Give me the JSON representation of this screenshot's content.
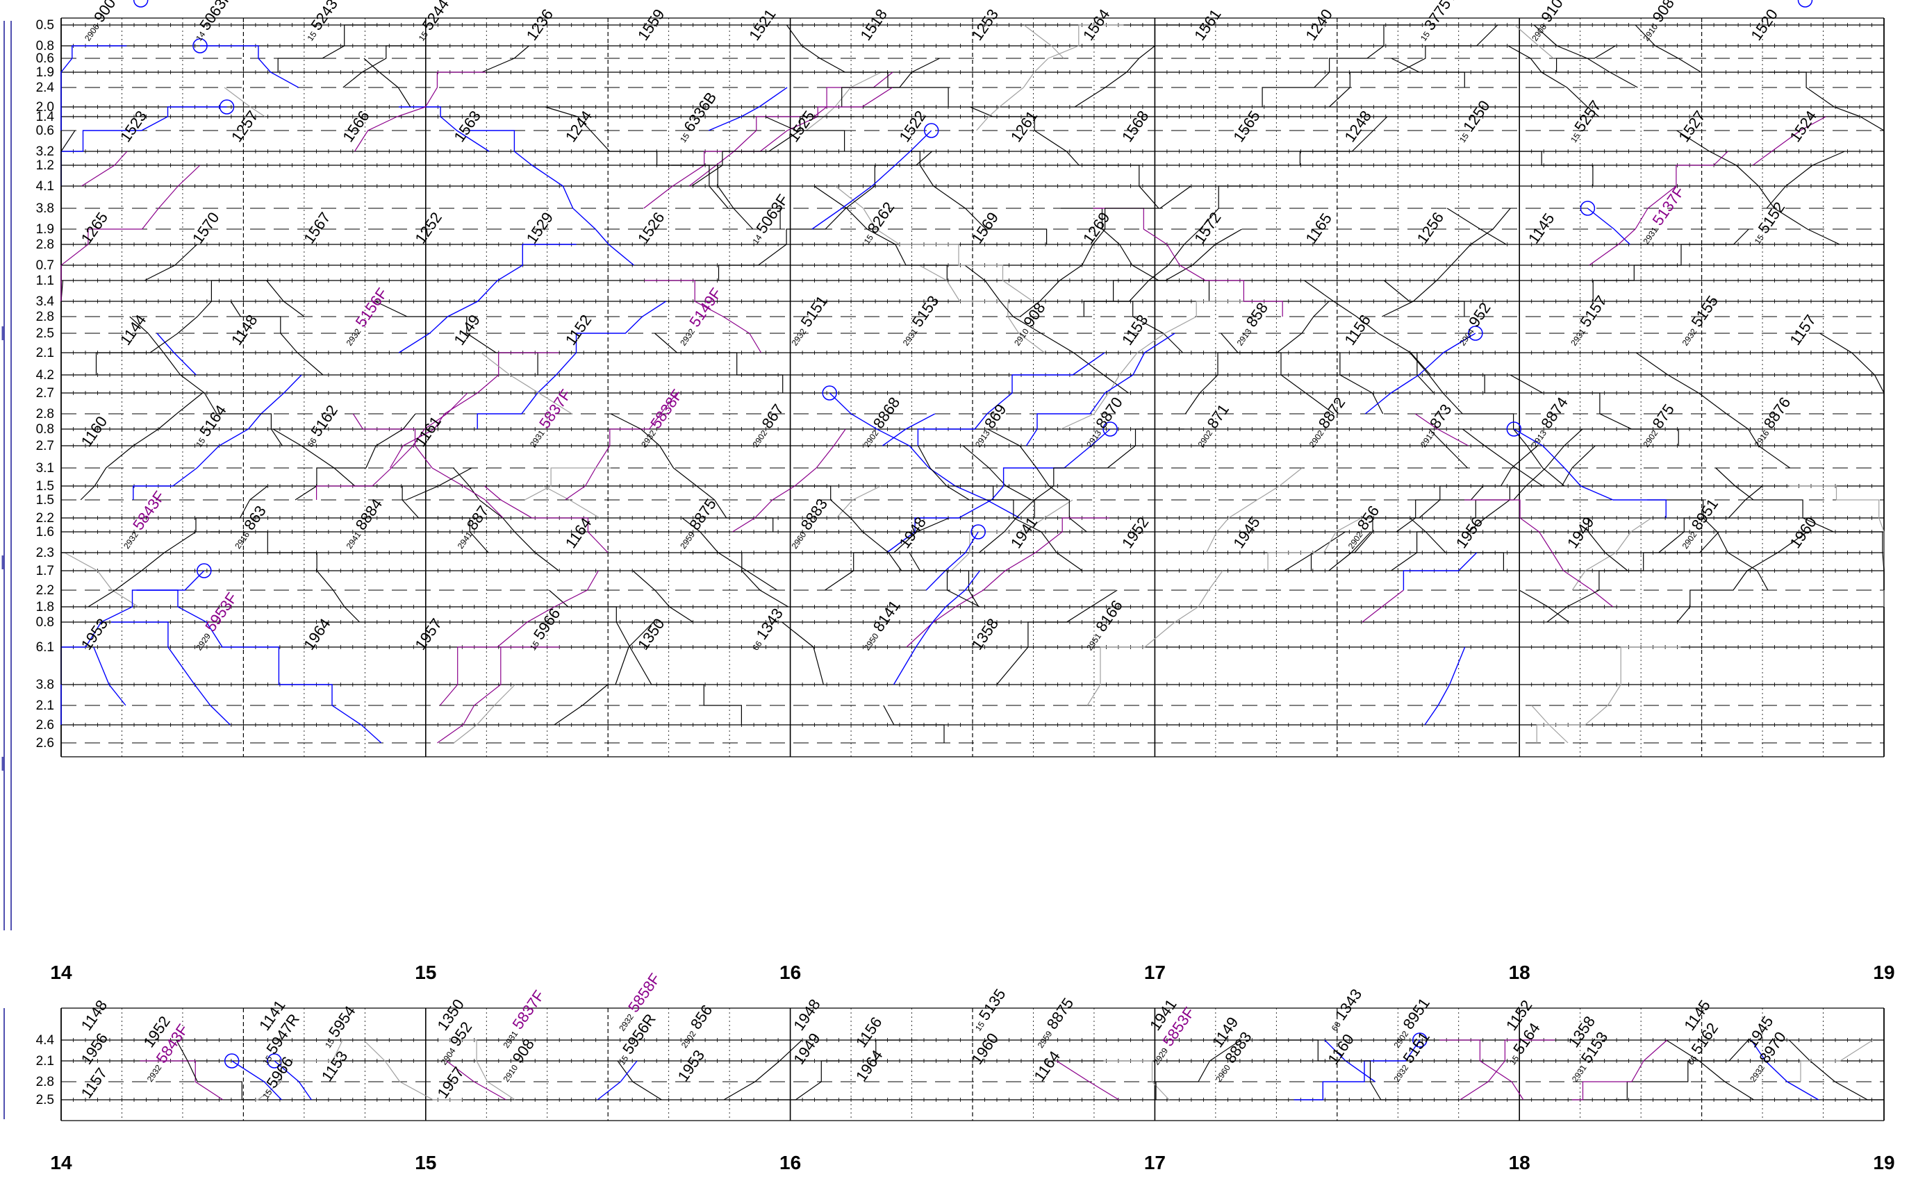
{
  "colors": {
    "background": "#ffffff",
    "grid": "#000000",
    "freight_train": "#000000",
    "passenger_train": "#0000ff",
    "special_train": "#8b008b",
    "inactive_train": "#a0a0a0"
  },
  "main_chart": {
    "station_labels": [
      "0.5",
      "0.8",
      "0.6",
      "1.9",
      "2.4",
      "2.0",
      "1.4",
      "0.6",
      "3.2",
      "1.2",
      "4.1",
      "3.8",
      "1.9",
      "2.8",
      "0.7",
      "1.1",
      "3.4",
      "2.8",
      "2.5",
      "2.1",
      "4.2",
      "2.7",
      "2.8",
      "0.8",
      "2.7",
      "3.1",
      "1.5",
      "1.5",
      "2.2",
      "1.6",
      "2.3",
      "1.7",
      "2.2",
      "1.8",
      "0.8",
      "6.1",
      "3.8",
      "2.1",
      "2.6",
      "2.6"
    ],
    "hour_labels": [
      "14",
      "15",
      "16",
      "17",
      "18",
      "19"
    ],
    "train_labels": [
      {
        "number": "900",
        "prefix": "2906",
        "color": "black"
      },
      {
        "number": "5063F",
        "prefix": "14",
        "color": "black"
      },
      {
        "number": "5243",
        "prefix": "15",
        "color": "black"
      },
      {
        "number": "5244",
        "prefix": "15",
        "color": "black"
      },
      {
        "number": "1236",
        "prefix": "",
        "color": "black"
      },
      {
        "number": "1559",
        "prefix": "",
        "color": "black"
      },
      {
        "number": "1521",
        "prefix": "",
        "color": "black"
      },
      {
        "number": "1518",
        "prefix": "",
        "color": "black"
      },
      {
        "number": "1253",
        "prefix": "",
        "color": "black"
      },
      {
        "number": "1564",
        "prefix": "",
        "color": "black"
      },
      {
        "number": "1561",
        "prefix": "",
        "color": "black"
      },
      {
        "number": "1240",
        "prefix": "",
        "color": "black"
      },
      {
        "number": "3775T",
        "prefix": "15",
        "color": "black"
      },
      {
        "number": "910",
        "prefix": "2908",
        "color": "black"
      },
      {
        "number": "908",
        "prefix": "2910",
        "color": "black"
      },
      {
        "number": "1520",
        "prefix": "",
        "color": "black"
      },
      {
        "number": "1523",
        "prefix": "",
        "color": "black"
      },
      {
        "number": "1257",
        "prefix": "",
        "color": "black"
      },
      {
        "number": "1566",
        "prefix": "",
        "color": "black"
      },
      {
        "number": "1563",
        "prefix": "",
        "color": "black"
      },
      {
        "number": "1244",
        "prefix": "",
        "color": "black"
      },
      {
        "number": "6336B",
        "prefix": "15",
        "color": "black"
      },
      {
        "number": "1525",
        "prefix": "",
        "color": "black"
      },
      {
        "number": "1522",
        "prefix": "",
        "color": "black"
      },
      {
        "number": "1261",
        "prefix": "",
        "color": "black"
      },
      {
        "number": "1568",
        "prefix": "",
        "color": "black"
      },
      {
        "number": "1565",
        "prefix": "",
        "color": "black"
      },
      {
        "number": "1248",
        "prefix": "",
        "color": "black"
      },
      {
        "number": "1250",
        "prefix": "15",
        "color": "black"
      },
      {
        "number": "5257",
        "prefix": "15",
        "color": "black"
      },
      {
        "number": "1527",
        "prefix": "",
        "color": "black"
      },
      {
        "number": "1524",
        "prefix": "",
        "color": "black"
      },
      {
        "number": "1265",
        "prefix": "",
        "color": "black"
      },
      {
        "number": "1570",
        "prefix": "",
        "color": "black"
      },
      {
        "number": "1567",
        "prefix": "",
        "color": "black"
      },
      {
        "number": "1252",
        "prefix": "",
        "color": "black"
      },
      {
        "number": "1529",
        "prefix": "",
        "color": "black"
      },
      {
        "number": "1526",
        "prefix": "",
        "color": "black"
      },
      {
        "number": "5063F",
        "prefix": "14",
        "color": "black"
      },
      {
        "number": "8262",
        "prefix": "15",
        "color": "black"
      },
      {
        "number": "1569",
        "prefix": "",
        "color": "black"
      },
      {
        "number": "1269",
        "prefix": "",
        "color": "black"
      },
      {
        "number": "1572",
        "prefix": "",
        "color": "black"
      },
      {
        "number": "1165",
        "prefix": "",
        "color": "black"
      },
      {
        "number": "1256",
        "prefix": "",
        "color": "black"
      },
      {
        "number": "1145",
        "prefix": "",
        "color": "black"
      },
      {
        "number": "5137F",
        "prefix": "2931",
        "color": "purple"
      },
      {
        "number": "5152",
        "prefix": "15",
        "color": "black"
      },
      {
        "number": "1144",
        "prefix": "",
        "color": "black"
      },
      {
        "number": "1148",
        "prefix": "",
        "color": "black"
      },
      {
        "number": "5156F",
        "prefix": "2932",
        "color": "purple"
      },
      {
        "number": "1149",
        "prefix": "",
        "color": "black"
      },
      {
        "number": "1152",
        "prefix": "",
        "color": "black"
      },
      {
        "number": "5149F",
        "prefix": "2932",
        "color": "purple"
      },
      {
        "number": "5151",
        "prefix": "2932",
        "color": "black"
      },
      {
        "number": "5153",
        "prefix": "2931",
        "color": "black"
      },
      {
        "number": "908",
        "prefix": "2910",
        "color": "black"
      },
      {
        "number": "1153",
        "prefix": "",
        "color": "black"
      },
      {
        "number": "858",
        "prefix": "2913",
        "color": "black"
      },
      {
        "number": "1156",
        "prefix": "",
        "color": "black"
      },
      {
        "number": "952",
        "prefix": "2904",
        "color": "black"
      },
      {
        "number": "5157",
        "prefix": "2931",
        "color": "black"
      },
      {
        "number": "5155",
        "prefix": "2932",
        "color": "black"
      },
      {
        "number": "1157",
        "prefix": "",
        "color": "black"
      },
      {
        "number": "1160",
        "prefix": "",
        "color": "black"
      },
      {
        "number": "5164",
        "prefix": "15",
        "color": "black"
      },
      {
        "number": "5162",
        "prefix": "66",
        "color": "black"
      },
      {
        "number": "1161",
        "prefix": "",
        "color": "black"
      },
      {
        "number": "5837F",
        "prefix": "2931",
        "color": "purple"
      },
      {
        "number": "5838F",
        "prefix": "2932",
        "color": "purple"
      },
      {
        "number": "867",
        "prefix": "2902",
        "color": "black"
      },
      {
        "number": "8868",
        "prefix": "2902",
        "color": "black"
      },
      {
        "number": "869",
        "prefix": "2913",
        "color": "black"
      },
      {
        "number": "8870",
        "prefix": "2913",
        "color": "black"
      },
      {
        "number": "871",
        "prefix": "2902",
        "color": "black"
      },
      {
        "number": "8872",
        "prefix": "2902",
        "color": "black"
      },
      {
        "number": "873",
        "prefix": "2913",
        "color": "black"
      },
      {
        "number": "8874",
        "prefix": "2913",
        "color": "black"
      },
      {
        "number": "875",
        "prefix": "2902",
        "color": "black"
      },
      {
        "number": "8876",
        "prefix": "2916",
        "color": "black"
      },
      {
        "number": "5843F",
        "prefix": "2932",
        "color": "purple"
      },
      {
        "number": "863",
        "prefix": "2916",
        "color": "black"
      },
      {
        "number": "8884",
        "prefix": "2941",
        "color": "black"
      },
      {
        "number": "887",
        "prefix": "2941",
        "color": "black"
      },
      {
        "number": "1164",
        "prefix": "",
        "color": "black"
      },
      {
        "number": "8875",
        "prefix": "2959",
        "color": "black"
      },
      {
        "number": "8883",
        "prefix": "2960",
        "color": "black"
      },
      {
        "number": "1948",
        "prefix": "",
        "color": "black"
      },
      {
        "number": "1941",
        "prefix": "",
        "color": "black"
      },
      {
        "number": "1952",
        "prefix": "",
        "color": "black"
      },
      {
        "number": "1945",
        "prefix": "",
        "color": "black"
      },
      {
        "number": "856",
        "prefix": "2902",
        "color": "black"
      },
      {
        "number": "1956",
        "prefix": "",
        "color": "black"
      },
      {
        "number": "1949",
        "prefix": "",
        "color": "black"
      },
      {
        "number": "8951",
        "prefix": "2902",
        "color": "black"
      },
      {
        "number": "1960",
        "prefix": "",
        "color": "black"
      },
      {
        "number": "1953",
        "prefix": "",
        "color": "black"
      },
      {
        "number": "5953F",
        "prefix": "2929",
        "color": "purple"
      },
      {
        "number": "1964",
        "prefix": "",
        "color": "black"
      },
      {
        "number": "1957",
        "prefix": "",
        "color": "black"
      },
      {
        "number": "5966",
        "prefix": "15",
        "color": "black"
      },
      {
        "number": "1350",
        "prefix": "",
        "color": "black"
      },
      {
        "number": "1343",
        "prefix": "66",
        "color": "black"
      },
      {
        "number": "8141",
        "prefix": "2950",
        "color": "black"
      },
      {
        "number": "1358",
        "prefix": "",
        "color": "black"
      },
      {
        "number": "8166",
        "prefix": "2951",
        "color": "black"
      }
    ]
  },
  "lower_chart": {
    "station_labels": [
      "4.4",
      "2.1",
      "2.8",
      "2.5"
    ],
    "hour_labels": [
      "14",
      "15",
      "16",
      "17",
      "18",
      "19"
    ],
    "train_labels": [
      {
        "number": "1148",
        "prefix": "",
        "color": "black"
      },
      {
        "number": "1141",
        "prefix": "",
        "color": "black"
      },
      {
        "number": "1350",
        "prefix": "",
        "color": "black"
      },
      {
        "number": "5858F",
        "prefix": "2932",
        "color": "purple"
      },
      {
        "number": "1948",
        "prefix": "",
        "color": "black"
      },
      {
        "number": "5135",
        "prefix": "15",
        "color": "black"
      },
      {
        "number": "1941",
        "prefix": "",
        "color": "black"
      },
      {
        "number": "1343",
        "prefix": "66",
        "color": "black"
      },
      {
        "number": "1152",
        "prefix": "",
        "color": "black"
      },
      {
        "number": "1145",
        "prefix": "",
        "color": "black"
      },
      {
        "number": "1952",
        "prefix": "",
        "color": "black"
      },
      {
        "number": "5954",
        "prefix": "15",
        "color": "black"
      },
      {
        "number": "5837F",
        "prefix": "2931",
        "color": "purple"
      },
      {
        "number": "856",
        "prefix": "2902",
        "color": "black"
      },
      {
        "number": "1156",
        "prefix": "",
        "color": "black"
      },
      {
        "number": "8875",
        "prefix": "2959",
        "color": "black"
      },
      {
        "number": "1149",
        "prefix": "",
        "color": "black"
      },
      {
        "number": "8951",
        "prefix": "2902",
        "color": "black"
      },
      {
        "number": "1358",
        "prefix": "",
        "color": "black"
      },
      {
        "number": "1945",
        "prefix": "",
        "color": "black"
      },
      {
        "number": "1956",
        "prefix": "",
        "color": "black"
      },
      {
        "number": "5947R",
        "prefix": "15",
        "color": "black"
      },
      {
        "number": "952",
        "prefix": "2904",
        "color": "black"
      },
      {
        "number": "5956R",
        "prefix": "15",
        "color": "black"
      },
      {
        "number": "1949",
        "prefix": "",
        "color": "black"
      },
      {
        "number": "1960",
        "prefix": "",
        "color": "black"
      },
      {
        "number": "5853F",
        "prefix": "2929",
        "color": "purple"
      },
      {
        "number": "1160",
        "prefix": "",
        "color": "black"
      },
      {
        "number": "5164",
        "prefix": "15",
        "color": "black"
      },
      {
        "number": "5162",
        "prefix": "66",
        "color": "black"
      },
      {
        "number": "5843F",
        "prefix": "2932",
        "color": "purple"
      },
      {
        "number": "1153",
        "prefix": "",
        "color": "black"
      },
      {
        "number": "908",
        "prefix": "2910",
        "color": "black"
      },
      {
        "number": "1953",
        "prefix": "",
        "color": "black"
      },
      {
        "number": "1964",
        "prefix": "",
        "color": "black"
      },
      {
        "number": "1164",
        "prefix": "",
        "color": "black"
      },
      {
        "number": "8883",
        "prefix": "2960",
        "color": "black"
      },
      {
        "number": "5151",
        "prefix": "2932",
        "color": "black"
      },
      {
        "number": "5153",
        "prefix": "2931",
        "color": "black"
      },
      {
        "number": "8970",
        "prefix": "2932",
        "color": "black"
      },
      {
        "number": "1157",
        "prefix": "",
        "color": "black"
      },
      {
        "number": "5966",
        "prefix": "15",
        "color": "black"
      },
      {
        "number": "1957",
        "prefix": "",
        "color": "black"
      }
    ]
  }
}
